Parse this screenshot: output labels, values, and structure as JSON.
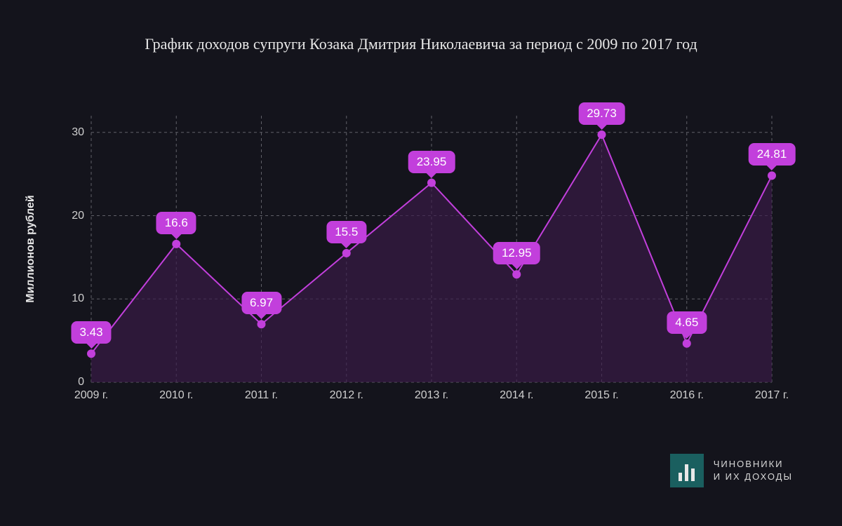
{
  "title": "График доходов супруги Козака Дмитрия Николаевича за период с 2009 по 2017 год",
  "y_axis_label": "Миллионов рублей",
  "chart": {
    "type": "area-line",
    "background_color": "#14141c",
    "grid_color": "#606068",
    "grid_dash": "4,4",
    "line_color": "#c23fdc",
    "line_width": 2,
    "area_fill": "#3a1a4a",
    "area_opacity": 0.65,
    "marker_color": "#c23fdc",
    "marker_radius": 6,
    "tooltip_bg": "#c23fdc",
    "tooltip_text_color": "#ffffff",
    "tooltip_fontsize": 17,
    "title_fontsize": 22,
    "title_color": "#e8e8e8",
    "axis_label_color": "#d0d0d0",
    "axis_label_fontsize": 16,
    "y_axis_fontweight": "bold",
    "ylim": [
      0,
      32
    ],
    "yticks": [
      0,
      10,
      20,
      30
    ],
    "categories": [
      "2009 г.",
      "2010 г.",
      "2011 г.",
      "2012 г.",
      "2013 г.",
      "2014 г.",
      "2015 г.",
      "2016 г.",
      "2017 г."
    ],
    "values": [
      3.43,
      16.6,
      6.97,
      15.5,
      23.95,
      12.95,
      29.73,
      4.65,
      24.81
    ],
    "value_labels": [
      "3.43",
      "16.6",
      "6.97",
      "15.5",
      "23.95",
      "12.95",
      "29.73",
      "4.65",
      "24.81"
    ]
  },
  "logo": {
    "line1": "ЧИНОВНИКИ",
    "line2": "И ИХ ДОХОДЫ",
    "icon_bg": "#1a5f5f",
    "icon_bar_color": "#e8e8e8"
  }
}
